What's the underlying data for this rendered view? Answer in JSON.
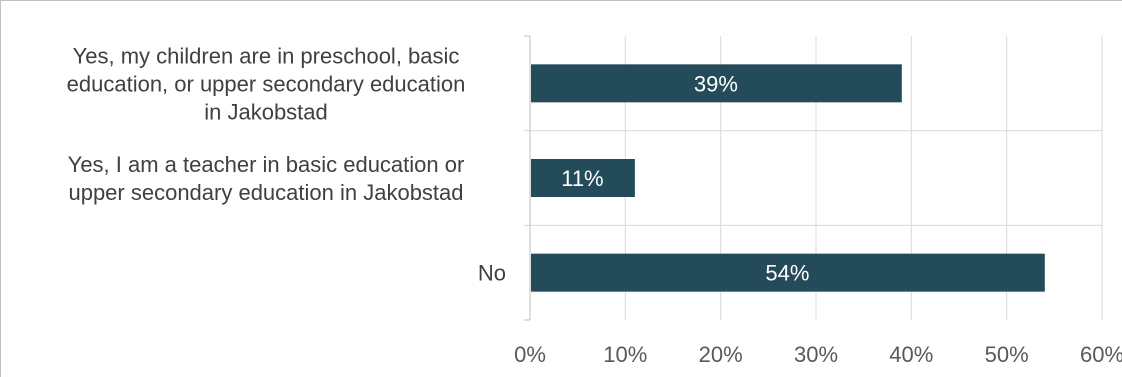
{
  "colors": {
    "bar": "#244b5a",
    "grid": "#d9d9d9",
    "axis": "#bfbfbf",
    "label": "#404040",
    "tick": "#595959",
    "bar_text": "#ffffff"
  },
  "chart_data": {
    "type": "bar",
    "orientation": "horizontal",
    "categories": [
      [
        "Yes, my children are in preschool, basic",
        "education, or upper secondary education",
        "in Jakobstad"
      ],
      [
        "Yes, I am a teacher in basic education or",
        "upper secondary education in Jakobstad"
      ],
      [
        "No"
      ]
    ],
    "values": [
      39,
      11,
      54
    ],
    "value_labels": [
      "39%",
      "11%",
      "54%"
    ],
    "xlim": [
      0,
      60
    ],
    "xticks": [
      "0%",
      "10%",
      "20%",
      "30%",
      "40%",
      "50%",
      "60%"
    ],
    "grid": true,
    "legend": "none"
  }
}
